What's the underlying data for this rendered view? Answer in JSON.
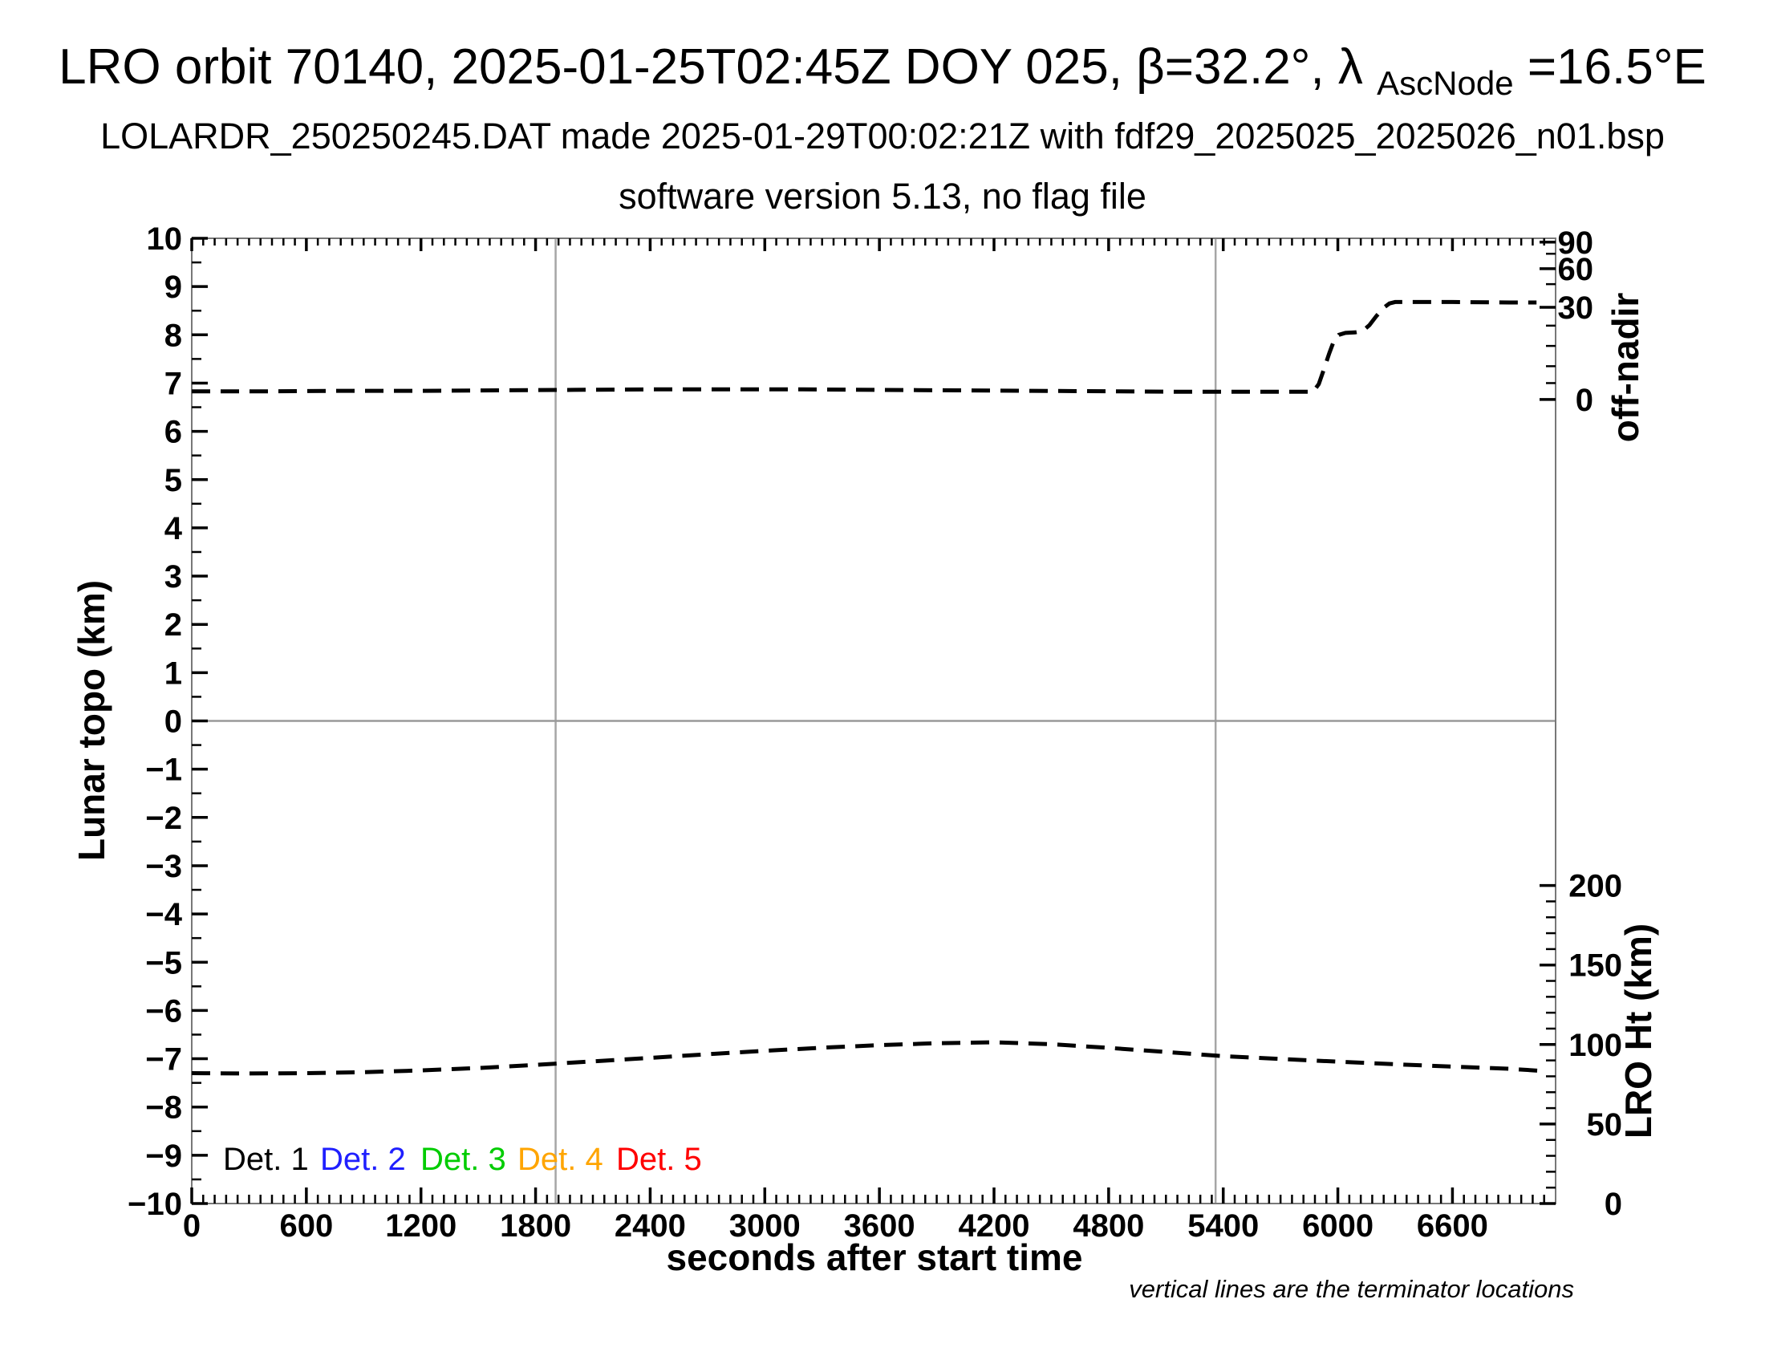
{
  "header": {
    "title_prefix": "LRO orbit 70140, 2025-01-25T02:45Z DOY 025, β=32.2°, λ",
    "title_sub": "AscNode",
    "title_suffix": "=16.5°E",
    "line2": "LOLARDR_250250245.DAT made 2025-01-29T00:02:21Z with fdf29_2025025_2025026_n01.bsp",
    "line3": "software version 5.13, no flag file"
  },
  "chart_data": {
    "type": "line",
    "xlabel": "seconds after start time",
    "ylabel_left": "Lunar topo (km)",
    "ylabel_right_top": "off-nadir",
    "ylabel_right_bottom": "LRO Ht (km)",
    "footnote": "vertical lines are the terminator locations",
    "xlim": [
      0,
      7140
    ],
    "ylim_left": [
      -10,
      10
    ],
    "x_major_ticks": [
      0,
      600,
      1200,
      1800,
      2400,
      3000,
      3600,
      4200,
      4800,
      5400,
      6000,
      6600
    ],
    "x_minor_step": 60,
    "y_major_ticks": [
      -10,
      -9,
      -8,
      -7,
      -6,
      -5,
      -4,
      -3,
      -2,
      -1,
      0,
      1,
      2,
      3,
      4,
      5,
      6,
      7,
      8,
      9,
      10
    ],
    "y_minor_step": 0.5,
    "grid_on": false,
    "zero_line": 0,
    "terminators_s": [
      1905,
      5360
    ],
    "off_nadir_axis": {
      "note": "nonlinear right axis, upper part of plot",
      "tick_labels": [
        90,
        60,
        30,
        0
      ],
      "tick_topo_positions": [
        9.92,
        9.37,
        8.57,
        6.66
      ],
      "minor_topo_positions": [
        9.68,
        9.05,
        8.19,
        7.77,
        7.35,
        7.0
      ]
    },
    "lro_ht_axis": {
      "note": "linear right axis, lower part of plot; topo = base_topo + km*topo_per_km",
      "tick_labels": [
        0,
        50,
        100,
        150,
        200
      ],
      "base_topo": -10,
      "topo_per_km": 0.03295,
      "minor_step_km": 10,
      "max_km": 200
    },
    "series": [
      {
        "name": "off-nadir angle",
        "legend": null,
        "color": "#000000",
        "style": "dashed",
        "note": "~2° off-nadir until slew starts near 5880 s, pause near 24°, settles at ~32° (plotted on nonlinear off-nadir axis; values below are topo-equivalent y positions)",
        "points_topo": [
          [
            0,
            6.83
          ],
          [
            400,
            6.83
          ],
          [
            800,
            6.84
          ],
          [
            1200,
            6.84
          ],
          [
            1600,
            6.85
          ],
          [
            2000,
            6.86
          ],
          [
            2400,
            6.87
          ],
          [
            2800,
            6.87
          ],
          [
            3200,
            6.87
          ],
          [
            3600,
            6.86
          ],
          [
            4000,
            6.85
          ],
          [
            4400,
            6.84
          ],
          [
            4800,
            6.83
          ],
          [
            5200,
            6.82
          ],
          [
            5600,
            6.82
          ],
          [
            5870,
            6.82
          ],
          [
            5900,
            6.98
          ],
          [
            5930,
            7.32
          ],
          [
            5955,
            7.62
          ],
          [
            5980,
            7.88
          ],
          [
            6005,
            8.0
          ],
          [
            6040,
            8.04
          ],
          [
            6090,
            8.05
          ],
          [
            6130,
            8.08
          ],
          [
            6165,
            8.2
          ],
          [
            6200,
            8.38
          ],
          [
            6240,
            8.56
          ],
          [
            6270,
            8.65
          ],
          [
            6300,
            8.68
          ],
          [
            6600,
            8.68
          ],
          [
            6900,
            8.67
          ],
          [
            7040,
            8.67
          ]
        ]
      },
      {
        "name": "LRO height",
        "legend": null,
        "color": "#000000",
        "style": "dashed",
        "note": "spacecraft altitude in km, read on lower-right axis",
        "points_km": [
          [
            0,
            82.0
          ],
          [
            300,
            81.8
          ],
          [
            600,
            82.0
          ],
          [
            900,
            82.6
          ],
          [
            1200,
            83.7
          ],
          [
            1500,
            85.2
          ],
          [
            1800,
            87.2
          ],
          [
            2100,
            89.4
          ],
          [
            2400,
            91.6
          ],
          [
            2700,
            93.9
          ],
          [
            3000,
            96.0
          ],
          [
            3300,
            98.0
          ],
          [
            3600,
            99.6
          ],
          [
            3900,
            100.8
          ],
          [
            4200,
            101.4
          ],
          [
            4500,
            100.2
          ],
          [
            4800,
            97.9
          ],
          [
            5100,
            95.3
          ],
          [
            5400,
            92.7
          ],
          [
            5700,
            90.9
          ],
          [
            6000,
            89.2
          ],
          [
            6300,
            87.6
          ],
          [
            6600,
            86.1
          ],
          [
            6900,
            84.7
          ],
          [
            7080,
            83.3
          ]
        ]
      }
    ],
    "legend": [
      {
        "label": "Det. 1",
        "color": "#000000"
      },
      {
        "label": "Det. 2",
        "color": "#1f1fff"
      },
      {
        "label": "Det. 3",
        "color": "#00cc00"
      },
      {
        "label": "Det. 4",
        "color": "#ffa500"
      },
      {
        "label": "Det. 5",
        "color": "#ff0000"
      }
    ],
    "colors": {
      "frame": "#787878",
      "gridline": "#a6a6a6",
      "zero_line": "#999999",
      "curve": "#000000"
    }
  }
}
